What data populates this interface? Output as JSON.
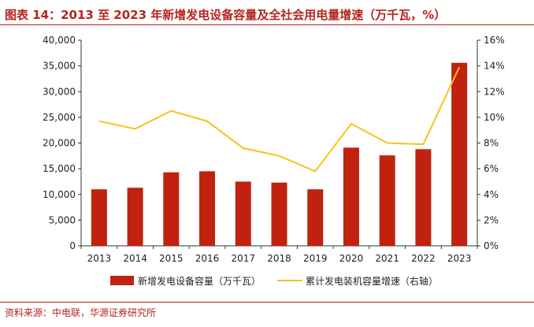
{
  "title": "图表 14：2013 至 2023 年新增发电设备容量及全社会用电量增速（万千瓦，%）",
  "source": "资料来源：中电联，华源证券研究所",
  "colors": {
    "bar": "#c0220f",
    "line": "#f6c31b",
    "accent": "#b3261e"
  },
  "chart_data": {
    "type": "bar",
    "categories": [
      "2013",
      "2014",
      "2015",
      "2016",
      "2017",
      "2018",
      "2019",
      "2020",
      "2021",
      "2022",
      "2023"
    ],
    "series": [
      {
        "name": "新增发电设备容量（万千瓦）",
        "type": "bar",
        "axis": "left",
        "values": [
          11000,
          11300,
          14300,
          14500,
          12500,
          12300,
          11000,
          19100,
          17600,
          18800,
          35600
        ]
      },
      {
        "name": "累计发电装机容量增速（右轴）",
        "type": "line",
        "axis": "right",
        "values": [
          9.7,
          9.1,
          10.5,
          9.7,
          7.6,
          7.0,
          5.8,
          9.5,
          8.0,
          7.9,
          13.9
        ]
      }
    ],
    "y_left": {
      "ylim": [
        0,
        40000
      ],
      "ticks": [
        "0",
        "5,000",
        "10,000",
        "15,000",
        "20,000",
        "25,000",
        "30,000",
        "35,000",
        "40,000"
      ]
    },
    "y_right": {
      "ylim": [
        0,
        16
      ],
      "ticks": [
        "0%",
        "2%",
        "4%",
        "6%",
        "8%",
        "10%",
        "12%",
        "14%",
        "16%"
      ]
    },
    "grid": false,
    "legend_position": "bottom"
  }
}
